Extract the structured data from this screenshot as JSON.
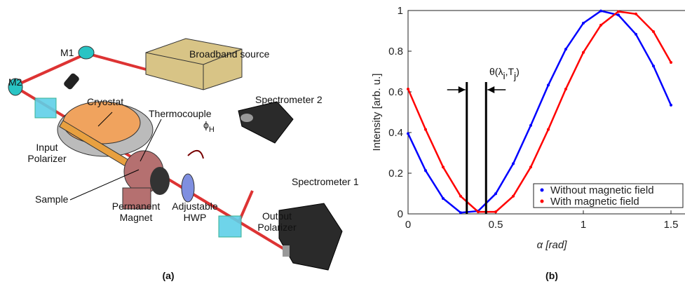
{
  "diagram": {
    "labels": [
      {
        "lines": [
          "M1"
        ],
        "x": 1
      },
      {
        "lines": [
          "M2"
        ],
        "x": 1
      },
      {
        "lines": [
          "Broadband source"
        ]
      },
      {
        "lines": [
          "Cryostat"
        ]
      },
      {
        "lines": [
          "Input",
          "Polarizer"
        ]
      },
      {
        "lines": [
          "Thermocouple"
        ]
      },
      {
        "lines": [
          "Sample"
        ]
      },
      {
        "lines": [
          "Permanent",
          "Magnet"
        ]
      },
      {
        "lines": [
          "Adjustable",
          "HWP"
        ]
      },
      {
        "lines": [
          "Output",
          "Polarizer"
        ]
      },
      {
        "lines": [
          "Spectrometer 2"
        ]
      },
      {
        "lines": [
          "Spectrometer 1"
        ]
      }
    ],
    "phi": [
      "ϕ",
      "H"
    ],
    "caption": "(a)"
  },
  "chart_data": {
    "type": "scatter",
    "ylabel": "Intensity [arb. u.]",
    "xlabel": "α [rad]",
    "caption": "(b)",
    "annotation": [
      "θ(λ",
      "i",
      ",T",
      "j",
      ")"
    ],
    "vlines": [
      0.335,
      0.445
    ],
    "x": [
      0,
      0.1,
      0.2,
      0.3,
      0.4,
      0.5,
      0.6,
      0.7,
      0.8,
      0.9,
      1.0,
      1.1,
      1.2,
      1.3,
      1.4,
      1.5
    ],
    "series": [
      {
        "name": "Without magnetic field",
        "color": "#0000ff",
        "values": [
          0.395,
          0.213,
          0.076,
          0.006,
          0.014,
          0.099,
          0.247,
          0.435,
          0.633,
          0.81,
          0.938,
          0.998,
          0.978,
          0.883,
          0.727,
          0.535
        ]
      },
      {
        "name": "With magnetic field",
        "color": "#ff0000",
        "values": [
          0.614,
          0.415,
          0.23,
          0.087,
          0.01,
          0.01,
          0.087,
          0.23,
          0.415,
          0.614,
          0.794,
          0.928,
          0.995,
          0.983,
          0.896,
          0.745
        ]
      }
    ],
    "xlim": [
      0,
      1.58
    ],
    "ylim": [
      0,
      1
    ],
    "xticks": [
      0,
      0.5,
      1,
      1.5
    ],
    "yticks": [
      0,
      0.2,
      0.4,
      0.6,
      0.8,
      1
    ],
    "legend": "lower right"
  }
}
